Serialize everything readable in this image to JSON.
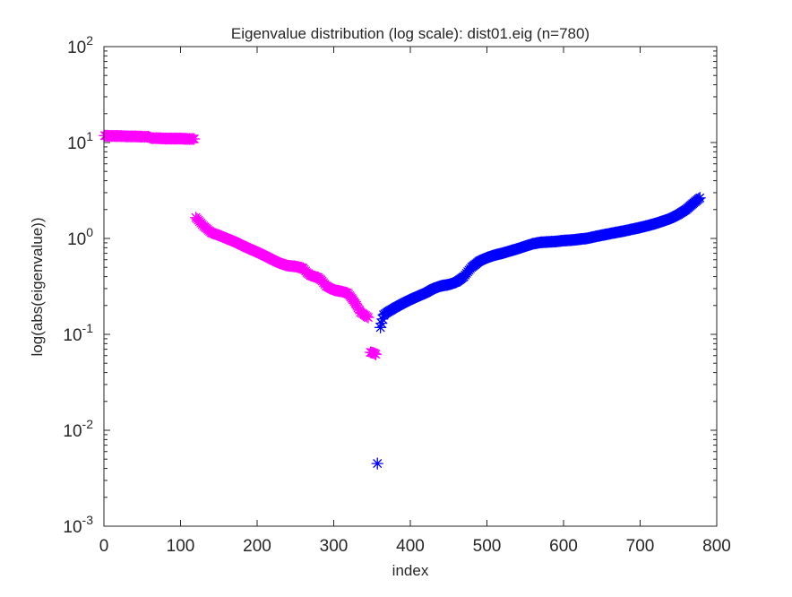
{
  "chart_data": {
    "type": "scatter",
    "title": "Eigenvalue distribution (log scale): dist01.eig (n=780)",
    "xlabel": "index",
    "ylabel": "log(abs(eigenvalue))",
    "xlim": [
      0,
      800
    ],
    "ylim": [
      0.001,
      100
    ],
    "y_scale": "log",
    "grid": false,
    "marker": "asterisk",
    "x_ticks": [
      {
        "value": 0,
        "label": "0"
      },
      {
        "value": 100,
        "label": "100"
      },
      {
        "value": 200,
        "label": "200"
      },
      {
        "value": 300,
        "label": "300"
      },
      {
        "value": 400,
        "label": "400"
      },
      {
        "value": 500,
        "label": "500"
      },
      {
        "value": 600,
        "label": "600"
      },
      {
        "value": 700,
        "label": "700"
      },
      {
        "value": 800,
        "label": "800"
      }
    ],
    "y_ticks": [
      {
        "value": 100,
        "base": "10",
        "exp": "2"
      },
      {
        "value": 10,
        "base": "10",
        "exp": "1"
      },
      {
        "value": 1,
        "base": "10",
        "exp": "0"
      },
      {
        "value": 0.1,
        "base": "10",
        "exp": "-1"
      },
      {
        "value": 0.01,
        "base": "10",
        "exp": "-2"
      },
      {
        "value": 0.001,
        "base": "10",
        "exp": "-3"
      }
    ],
    "series": [
      {
        "color": "#ff00ff",
        "points": [
          [
            1,
            11.8
          ],
          [
            10,
            11.7
          ],
          [
            20,
            11.7
          ],
          [
            30,
            11.6
          ],
          [
            40,
            11.6
          ],
          [
            50,
            11.5
          ],
          [
            58,
            11.5
          ],
          [
            62,
            11.1
          ],
          [
            70,
            11.1
          ],
          [
            80,
            11.0
          ],
          [
            90,
            11.0
          ],
          [
            100,
            11.0
          ],
          [
            110,
            10.9
          ],
          [
            118,
            10.9
          ],
          [
            120,
            1.65
          ],
          [
            125,
            1.5
          ],
          [
            130,
            1.35
          ],
          [
            135,
            1.25
          ],
          [
            140,
            1.15
          ],
          [
            150,
            1.08
          ],
          [
            160,
            1.0
          ],
          [
            170,
            0.93
          ],
          [
            180,
            0.85
          ],
          [
            190,
            0.78
          ],
          [
            200,
            0.72
          ],
          [
            210,
            0.66
          ],
          [
            220,
            0.6
          ],
          [
            230,
            0.55
          ],
          [
            240,
            0.52
          ],
          [
            250,
            0.51
          ],
          [
            260,
            0.49
          ],
          [
            265,
            0.44
          ],
          [
            270,
            0.41
          ],
          [
            280,
            0.39
          ],
          [
            285,
            0.36
          ],
          [
            290,
            0.32
          ],
          [
            300,
            0.29
          ],
          [
            310,
            0.28
          ],
          [
            318,
            0.27
          ],
          [
            325,
            0.23
          ],
          [
            330,
            0.2
          ],
          [
            335,
            0.17
          ],
          [
            340,
            0.16
          ],
          [
            345,
            0.15
          ],
          [
            348,
            0.065
          ],
          [
            352,
            0.064
          ],
          [
            355,
            0.062
          ]
        ]
      },
      {
        "color": "#0000ff",
        "points": [
          [
            357,
            0.0045
          ],
          [
            361,
            0.118
          ],
          [
            365,
            0.16
          ],
          [
            370,
            0.17
          ],
          [
            380,
            0.19
          ],
          [
            390,
            0.21
          ],
          [
            400,
            0.23
          ],
          [
            410,
            0.25
          ],
          [
            420,
            0.27
          ],
          [
            430,
            0.3
          ],
          [
            440,
            0.32
          ],
          [
            450,
            0.33
          ],
          [
            460,
            0.35
          ],
          [
            470,
            0.4
          ],
          [
            475,
            0.45
          ],
          [
            480,
            0.5
          ],
          [
            490,
            0.58
          ],
          [
            500,
            0.63
          ],
          [
            510,
            0.67
          ],
          [
            520,
            0.7
          ],
          [
            530,
            0.74
          ],
          [
            540,
            0.78
          ],
          [
            550,
            0.83
          ],
          [
            560,
            0.88
          ],
          [
            570,
            0.91
          ],
          [
            580,
            0.92
          ],
          [
            590,
            0.93
          ],
          [
            600,
            0.95
          ],
          [
            610,
            0.96
          ],
          [
            620,
            0.98
          ],
          [
            630,
            1.0
          ],
          [
            640,
            1.04
          ],
          [
            650,
            1.08
          ],
          [
            660,
            1.12
          ],
          [
            670,
            1.16
          ],
          [
            680,
            1.2
          ],
          [
            690,
            1.25
          ],
          [
            700,
            1.3
          ],
          [
            710,
            1.36
          ],
          [
            720,
            1.43
          ],
          [
            730,
            1.52
          ],
          [
            740,
            1.62
          ],
          [
            750,
            1.78
          ],
          [
            760,
            2.0
          ],
          [
            770,
            2.35
          ],
          [
            778,
            2.65
          ]
        ]
      }
    ]
  }
}
